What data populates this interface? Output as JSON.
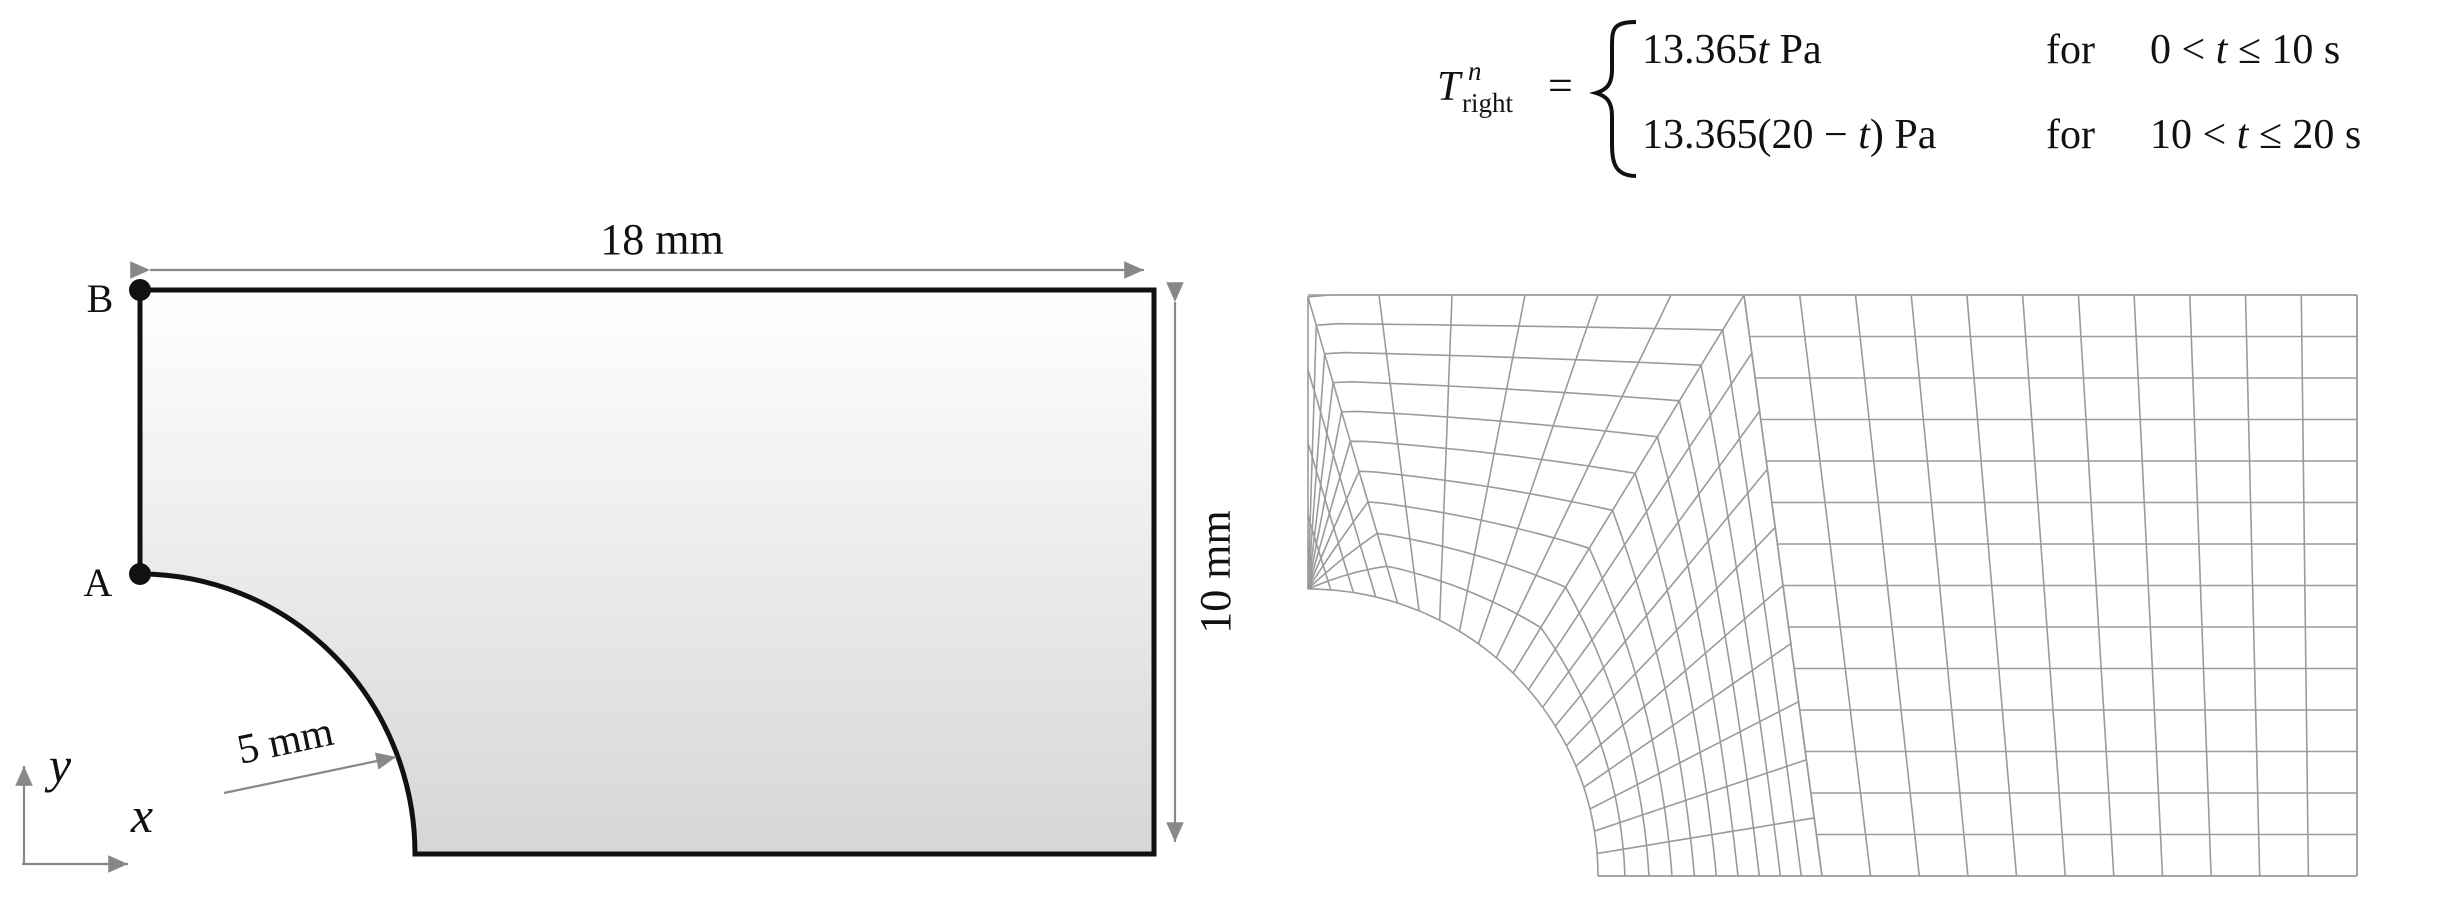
{
  "formula": {
    "lhs_symbol": "T",
    "lhs_superscript": "n",
    "lhs_subscript": "right",
    "equals": "=",
    "cases": [
      {
        "expr_prefix": "13.365",
        "expr_var": "t",
        "expr_suffix": " Pa",
        "word": "for",
        "cond_left": "0 <",
        "cond_var": "t",
        "cond_right": "≤ 10 s"
      },
      {
        "expr_prefix": "13.365(20 − ",
        "expr_var": "t",
        "expr_suffix": ") Pa",
        "word": "for",
        "cond_left": "10 <",
        "cond_var": "t",
        "cond_right": "≤ 20 s"
      }
    ]
  },
  "geometry_figure": {
    "width_label": "18 mm",
    "height_label": "10 mm",
    "radius_label": "5 mm",
    "point_a_label": "A",
    "point_b_label": "B",
    "axis_y_label": "y",
    "axis_x_label": "x",
    "fill_top_color": "#ffffff",
    "fill_bottom_color": "#d6d6d6",
    "outline_color": "#111111",
    "dimension_color": "#888888"
  },
  "mesh_figure": {
    "line_color": "#9a9a9a",
    "arc_zone_divisions": 10,
    "arc_zone_spokes": 21,
    "rect_zone_columns": 11
  }
}
